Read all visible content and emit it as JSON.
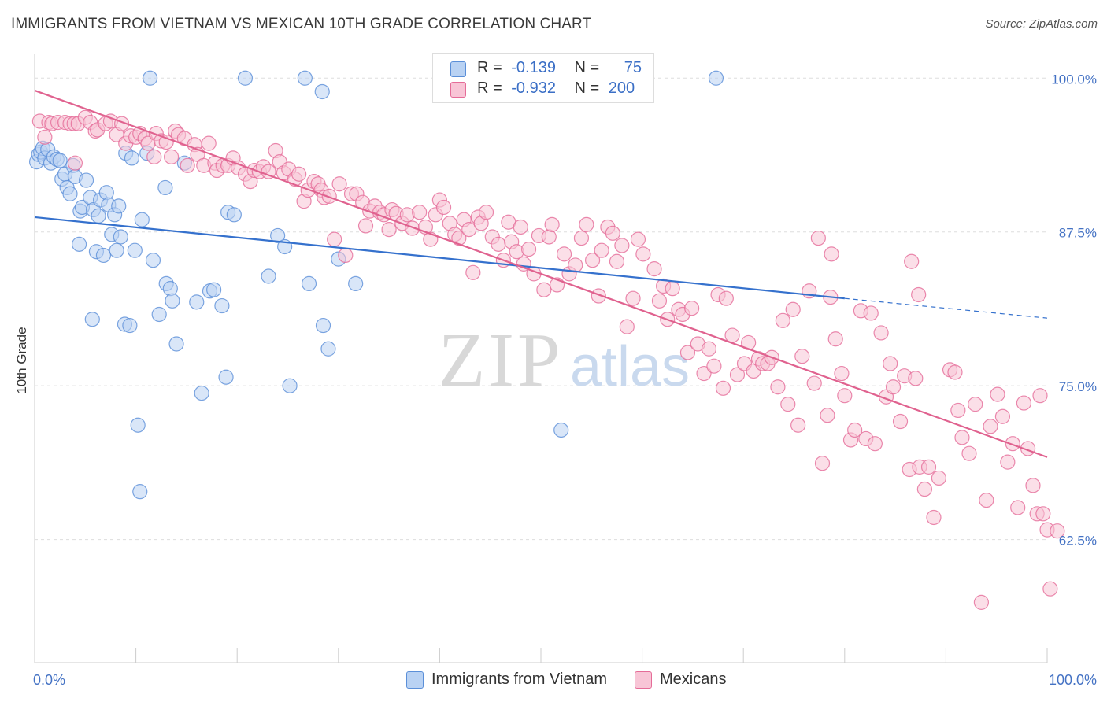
{
  "title": "IMMIGRANTS FROM VIETNAM VS MEXICAN 10TH GRADE CORRELATION CHART",
  "source": "Source: ZipAtlas.com",
  "watermark": {
    "zip": "ZIP",
    "atlas": "atlas"
  },
  "colors": {
    "vietnam": "#5b8fd8",
    "vietnam_fill": "#b9d2f3",
    "mexican": "#e56c98",
    "mexican_fill": "#f8c5d6",
    "tick_label": "#4472c4",
    "grid": "#dddddd"
  },
  "legend": {
    "rows": [
      {
        "r_label": "R =",
        "r_value": "-0.139",
        "n_label": "N =",
        "n_value": "75"
      },
      {
        "r_label": "R =",
        "r_value": "-0.932",
        "n_label": "N =",
        "n_value": "200"
      }
    ]
  },
  "chart_data": {
    "type": "scatter",
    "title": "IMMIGRANTS FROM VIETNAM VS MEXICAN 10TH GRADE CORRELATION CHART",
    "xlabel": "",
    "ylabel": "10th Grade",
    "xlim": [
      0,
      100
    ],
    "ylim": [
      52.5,
      102
    ],
    "x_tick_labels": [
      "0.0%",
      "100.0%"
    ],
    "y_ticks": [
      100,
      87.5,
      75,
      62.5
    ],
    "y_tick_labels": [
      "100.0%",
      "87.5%",
      "75.0%",
      "62.5%"
    ],
    "grid": true,
    "legend_position": "top-center",
    "series": [
      {
        "name": "Immigrants from Vietnam",
        "color": "#5b8fd8",
        "trend": {
          "x": [
            0,
            80
          ],
          "y": [
            88.7,
            82.1
          ],
          "dashed_to": [
            100,
            80.5
          ]
        },
        "points": [
          [
            0.2,
            93.2
          ],
          [
            0.4,
            93.8
          ],
          [
            0.6,
            94.0
          ],
          [
            0.8,
            94.3
          ],
          [
            1.0,
            93.5
          ],
          [
            1.3,
            94.2
          ],
          [
            1.6,
            93.1
          ],
          [
            1.9,
            93.6
          ],
          [
            2.2,
            93.4
          ],
          [
            2.5,
            93.3
          ],
          [
            2.7,
            91.8
          ],
          [
            3.0,
            92.2
          ],
          [
            3.2,
            91.1
          ],
          [
            3.5,
            90.6
          ],
          [
            3.8,
            92.9
          ],
          [
            4.0,
            92.0
          ],
          [
            4.4,
            86.5
          ],
          [
            4.5,
            89.2
          ],
          [
            4.7,
            89.5
          ],
          [
            5.1,
            91.7
          ],
          [
            5.5,
            90.3
          ],
          [
            5.7,
            80.4
          ],
          [
            5.8,
            89.3
          ],
          [
            6.1,
            85.9
          ],
          [
            6.3,
            88.8
          ],
          [
            6.5,
            90.1
          ],
          [
            6.8,
            85.6
          ],
          [
            7.1,
            90.7
          ],
          [
            7.3,
            89.7
          ],
          [
            7.6,
            87.3
          ],
          [
            7.9,
            88.9
          ],
          [
            8.1,
            86.0
          ],
          [
            8.3,
            89.6
          ],
          [
            8.5,
            87.1
          ],
          [
            8.9,
            80.0
          ],
          [
            9.0,
            93.9
          ],
          [
            9.4,
            79.9
          ],
          [
            9.6,
            93.5
          ],
          [
            9.9,
            86.0
          ],
          [
            10.2,
            71.8
          ],
          [
            10.4,
            66.4
          ],
          [
            10.6,
            88.5
          ],
          [
            11.1,
            93.9
          ],
          [
            11.4,
            100.0
          ],
          [
            11.7,
            85.2
          ],
          [
            12.3,
            80.8
          ],
          [
            12.9,
            91.1
          ],
          [
            13.0,
            83.3
          ],
          [
            13.4,
            82.9
          ],
          [
            13.6,
            81.9
          ],
          [
            14.0,
            78.4
          ],
          [
            14.8,
            93.1
          ],
          [
            16.0,
            81.8
          ],
          [
            16.5,
            74.4
          ],
          [
            17.3,
            82.7
          ],
          [
            17.7,
            82.8
          ],
          [
            18.5,
            81.5
          ],
          [
            18.9,
            75.7
          ],
          [
            19.1,
            89.1
          ],
          [
            19.7,
            88.9
          ],
          [
            20.8,
            100.0
          ],
          [
            23.1,
            83.9
          ],
          [
            24.0,
            87.2
          ],
          [
            24.7,
            86.3
          ],
          [
            25.2,
            75.0
          ],
          [
            26.7,
            100.0
          ],
          [
            27.1,
            83.3
          ],
          [
            28.4,
            98.9
          ],
          [
            28.5,
            79.9
          ],
          [
            29.0,
            78.0
          ],
          [
            30.0,
            85.3
          ],
          [
            31.7,
            83.3
          ],
          [
            52.0,
            71.4
          ],
          [
            67.3,
            100.0
          ]
        ]
      },
      {
        "name": "Mexicans",
        "color": "#e56c98",
        "trend": {
          "x": [
            0,
            100
          ],
          "y": [
            99.0,
            69.2
          ]
        },
        "points": [
          [
            0.5,
            96.5
          ],
          [
            1.0,
            95.2
          ],
          [
            1.4,
            96.4
          ],
          [
            1.7,
            96.3
          ],
          [
            2.3,
            96.4
          ],
          [
            3.0,
            96.4
          ],
          [
            3.5,
            96.3
          ],
          [
            3.9,
            96.3
          ],
          [
            4.0,
            93.1
          ],
          [
            4.3,
            96.3
          ],
          [
            5.0,
            96.8
          ],
          [
            5.5,
            96.4
          ],
          [
            6.0,
            95.7
          ],
          [
            6.2,
            95.8
          ],
          [
            7.0,
            96.3
          ],
          [
            7.5,
            96.5
          ],
          [
            8.1,
            95.4
          ],
          [
            8.6,
            96.3
          ],
          [
            9.0,
            94.7
          ],
          [
            9.5,
            95.3
          ],
          [
            10.0,
            95.2
          ],
          [
            10.4,
            95.5
          ],
          [
            10.9,
            95.1
          ],
          [
            11.2,
            94.7
          ],
          [
            11.8,
            93.6
          ],
          [
            12.0,
            95.5
          ],
          [
            12.5,
            94.9
          ],
          [
            13.0,
            94.8
          ],
          [
            13.5,
            93.6
          ],
          [
            13.9,
            95.7
          ],
          [
            14.2,
            95.4
          ],
          [
            14.8,
            95.1
          ],
          [
            15.1,
            92.9
          ],
          [
            15.8,
            94.6
          ],
          [
            16.1,
            93.8
          ],
          [
            16.7,
            92.9
          ],
          [
            17.2,
            94.7
          ],
          [
            17.8,
            93.1
          ],
          [
            18.0,
            92.5
          ],
          [
            18.6,
            92.9
          ],
          [
            19.1,
            92.9
          ],
          [
            19.6,
            93.5
          ],
          [
            20.1,
            92.7
          ],
          [
            20.8,
            92.2
          ],
          [
            21.3,
            91.6
          ],
          [
            21.7,
            92.5
          ],
          [
            22.2,
            92.4
          ],
          [
            22.6,
            92.8
          ],
          [
            23.1,
            92.4
          ],
          [
            23.8,
            94.1
          ],
          [
            24.2,
            93.2
          ],
          [
            24.6,
            92.3
          ],
          [
            25.1,
            92.6
          ],
          [
            25.7,
            91.8
          ],
          [
            26.1,
            92.2
          ],
          [
            26.6,
            90.0
          ],
          [
            27.0,
            90.9
          ],
          [
            27.6,
            91.6
          ],
          [
            28.0,
            91.4
          ],
          [
            28.3,
            90.9
          ],
          [
            28.6,
            90.3
          ],
          [
            29.1,
            90.4
          ],
          [
            29.6,
            86.9
          ],
          [
            30.1,
            91.4
          ],
          [
            30.7,
            85.6
          ],
          [
            31.3,
            90.6
          ],
          [
            31.8,
            90.6
          ],
          [
            32.4,
            89.9
          ],
          [
            32.7,
            88.0
          ],
          [
            33.1,
            89.2
          ],
          [
            33.6,
            89.6
          ],
          [
            34.1,
            89.1
          ],
          [
            34.5,
            88.9
          ],
          [
            35.0,
            87.7
          ],
          [
            35.3,
            89.3
          ],
          [
            35.7,
            89.0
          ],
          [
            36.3,
            88.2
          ],
          [
            36.8,
            88.9
          ],
          [
            37.3,
            87.8
          ],
          [
            38.0,
            89.1
          ],
          [
            38.6,
            87.9
          ],
          [
            39.1,
            86.9
          ],
          [
            39.6,
            88.9
          ],
          [
            40.0,
            90.1
          ],
          [
            40.4,
            89.5
          ],
          [
            41.0,
            88.2
          ],
          [
            41.5,
            87.3
          ],
          [
            41.9,
            87.0
          ],
          [
            42.4,
            88.5
          ],
          [
            42.9,
            87.7
          ],
          [
            43.3,
            84.2
          ],
          [
            43.8,
            88.7
          ],
          [
            44.1,
            88.2
          ],
          [
            44.6,
            89.1
          ],
          [
            45.2,
            87.1
          ],
          [
            45.8,
            86.5
          ],
          [
            46.3,
            85.2
          ],
          [
            46.8,
            88.3
          ],
          [
            47.1,
            86.7
          ],
          [
            47.6,
            85.9
          ],
          [
            48.0,
            87.9
          ],
          [
            48.3,
            84.9
          ],
          [
            48.8,
            86.1
          ],
          [
            49.3,
            84.1
          ],
          [
            49.8,
            87.2
          ],
          [
            50.3,
            82.8
          ],
          [
            50.8,
            87.1
          ],
          [
            51.1,
            88.1
          ],
          [
            51.6,
            83.2
          ],
          [
            52.3,
            85.7
          ],
          [
            52.8,
            84.1
          ],
          [
            53.4,
            84.8
          ],
          [
            54.0,
            87.0
          ],
          [
            54.5,
            88.1
          ],
          [
            55.1,
            85.2
          ],
          [
            55.7,
            82.3
          ],
          [
            56.0,
            86.0
          ],
          [
            56.6,
            87.9
          ],
          [
            57.1,
            87.4
          ],
          [
            57.5,
            85.1
          ],
          [
            58.0,
            86.4
          ],
          [
            58.5,
            79.8
          ],
          [
            59.1,
            82.1
          ],
          [
            59.6,
            86.9
          ],
          [
            60.1,
            85.7
          ],
          [
            61.2,
            84.5
          ],
          [
            61.7,
            81.9
          ],
          [
            62.1,
            83.1
          ],
          [
            62.5,
            80.4
          ],
          [
            63.0,
            82.9
          ],
          [
            63.6,
            81.2
          ],
          [
            64.0,
            80.8
          ],
          [
            64.5,
            77.7
          ],
          [
            64.9,
            81.3
          ],
          [
            65.5,
            78.4
          ],
          [
            66.1,
            76.0
          ],
          [
            66.6,
            78.0
          ],
          [
            67.1,
            76.6
          ],
          [
            67.5,
            82.4
          ],
          [
            68.0,
            74.8
          ],
          [
            68.3,
            82.1
          ],
          [
            68.9,
            79.1
          ],
          [
            69.4,
            75.9
          ],
          [
            70.1,
            76.8
          ],
          [
            70.5,
            78.5
          ],
          [
            71.0,
            76.2
          ],
          [
            71.5,
            77.2
          ],
          [
            71.9,
            76.8
          ],
          [
            72.4,
            76.8
          ],
          [
            72.8,
            77.3
          ],
          [
            73.4,
            74.9
          ],
          [
            73.9,
            80.3
          ],
          [
            74.4,
            73.5
          ],
          [
            74.9,
            81.2
          ],
          [
            75.4,
            71.8
          ],
          [
            75.8,
            77.4
          ],
          [
            76.5,
            82.7
          ],
          [
            77.0,
            75.2
          ],
          [
            77.8,
            68.7
          ],
          [
            78.3,
            72.6
          ],
          [
            78.6,
            82.2
          ],
          [
            79.1,
            78.8
          ],
          [
            79.7,
            76.0
          ],
          [
            80.0,
            74.2
          ],
          [
            80.6,
            70.6
          ],
          [
            81.0,
            71.4
          ],
          [
            81.6,
            81.1
          ],
          [
            82.1,
            70.7
          ],
          [
            82.6,
            80.9
          ],
          [
            83.0,
            70.3
          ],
          [
            83.6,
            79.3
          ],
          [
            84.1,
            74.1
          ],
          [
            84.5,
            76.8
          ],
          [
            84.8,
            74.9
          ],
          [
            85.5,
            72.1
          ],
          [
            85.9,
            75.8
          ],
          [
            86.4,
            68.2
          ],
          [
            87.0,
            75.6
          ],
          [
            87.4,
            68.4
          ],
          [
            87.9,
            66.6
          ],
          [
            88.3,
            68.4
          ],
          [
            88.8,
            64.3
          ],
          [
            89.3,
            67.5
          ],
          [
            90.4,
            76.3
          ],
          [
            90.9,
            76.1
          ],
          [
            91.2,
            73.0
          ],
          [
            91.6,
            70.8
          ],
          [
            92.3,
            69.5
          ],
          [
            92.9,
            73.5
          ],
          [
            93.5,
            57.4
          ],
          [
            94.0,
            65.7
          ],
          [
            94.4,
            71.7
          ],
          [
            95.1,
            74.3
          ],
          [
            95.6,
            72.5
          ],
          [
            96.1,
            68.8
          ],
          [
            96.6,
            70.3
          ],
          [
            97.1,
            65.1
          ],
          [
            97.7,
            73.6
          ],
          [
            98.1,
            69.9
          ],
          [
            98.6,
            66.9
          ],
          [
            99.0,
            64.6
          ],
          [
            99.6,
            64.6
          ],
          [
            100.0,
            63.3
          ],
          [
            100.3,
            58.5
          ],
          [
            101.0,
            63.2
          ],
          [
            77.4,
            87.0
          ],
          [
            99.3,
            74.2
          ],
          [
            78.7,
            85.7
          ],
          [
            86.6,
            85.1
          ],
          [
            87.3,
            82.4
          ]
        ]
      }
    ]
  }
}
